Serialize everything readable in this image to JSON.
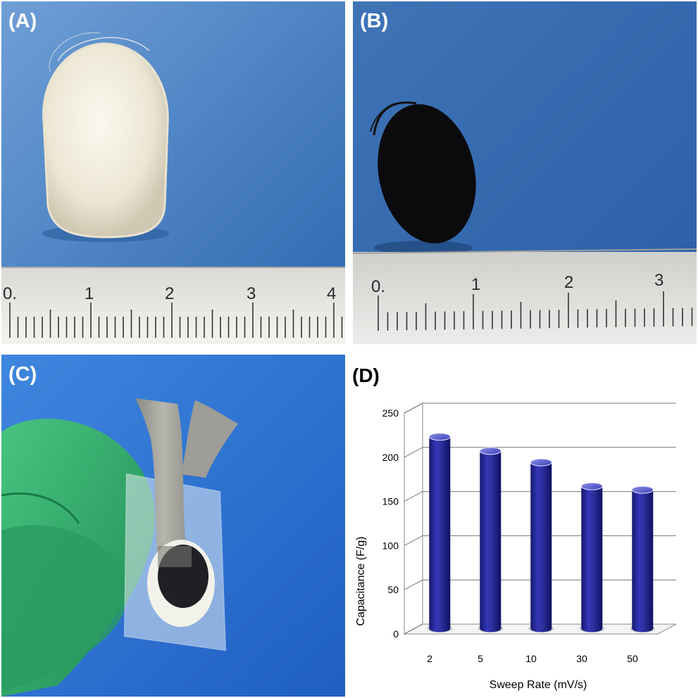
{
  "panels": {
    "a": {
      "label": "(A)",
      "ruler_numbers": [
        "0.",
        "1",
        "2",
        "3",
        "4"
      ]
    },
    "b": {
      "label": "(B)",
      "ruler_numbers": [
        "0.",
        "1",
        "2",
        "3"
      ]
    },
    "c": {
      "label": "(C)"
    },
    "d": {
      "label": "(D)"
    }
  },
  "colors": {
    "blue_background": "#4a78b8",
    "bar_color": "#2a2e9a",
    "glove_green": "#2fa86a"
  },
  "chart_data": {
    "type": "bar",
    "style": "3d-cylinder",
    "categories": [
      "2",
      "5",
      "10",
      "30",
      "50"
    ],
    "values": [
      217,
      201,
      188,
      161,
      157
    ],
    "xlabel": "Sweep Rate  (mV/s)",
    "ylabel": "Capacitance (F/g)",
    "ylim": [
      0,
      250
    ],
    "yticks": [
      "0",
      "50",
      "100",
      "150",
      "200",
      "250"
    ],
    "grid": true,
    "legend": "none"
  }
}
